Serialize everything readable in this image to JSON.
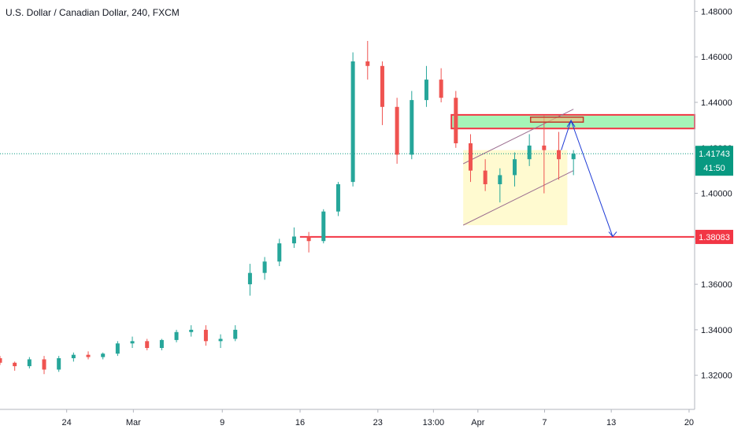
{
  "chart_data": {
    "type": "candlestick",
    "title": "U.S. Dollar / Canadian Dollar, 240, FXCM",
    "y_axis": {
      "range": [
        1.305,
        1.485
      ],
      "ticks": [
        "1.48000",
        "1.46000",
        "1.44000",
        "1.42000",
        "1.40000",
        "1.38000",
        "1.36000",
        "1.34000",
        "1.32000"
      ],
      "tick_values": [
        1.48,
        1.46,
        1.44,
        1.42,
        1.4,
        1.38,
        1.36,
        1.34,
        1.32
      ],
      "position": "right",
      "grid": false
    },
    "x_axis": {
      "ticks": [
        "24",
        "Mar",
        "9",
        "16",
        "23",
        "13:00",
        "Apr",
        "7",
        "13",
        "20"
      ],
      "tick_days": [
        3,
        9,
        17,
        24,
        31,
        36,
        40,
        46,
        52,
        59
      ]
    },
    "current_price": {
      "label": "1.41743",
      "value": 1.41743,
      "countdown": "41:50",
      "color": "#089981"
    },
    "support_level": {
      "label": "1.38083",
      "value": 1.38083,
      "color": "#f23645"
    },
    "resistance_zone": {
      "top": 1.4345,
      "bottom": 1.4285,
      "fill": "#a5f5b8",
      "border": "#f23645"
    },
    "channel": {
      "upper": {
        "from": [
          42,
          1.413
        ],
        "to": [
          51,
          1.437
        ]
      },
      "lower": {
        "from": [
          42,
          1.386
        ],
        "to": [
          51,
          1.41
        ]
      },
      "fill": "#fff9c4",
      "box": {
        "from_day": 42,
        "to_day": 50.5,
        "top": 1.419,
        "bottom": 1.386
      }
    },
    "small_box": {
      "from_day": 47.5,
      "to_day": 51.8,
      "top": 1.4335,
      "bottom": 1.4313
    },
    "projection": {
      "points": [
        [
          50,
          1.419
        ],
        [
          50.8,
          1.432
        ],
        [
          54.2,
          1.381
        ]
      ],
      "color": "#1e3bd6"
    },
    "colors": {
      "up": "#26a69a",
      "down": "#ef5350"
    },
    "ohlc": [
      [
        0,
        1.3275,
        1.3285,
        1.3245,
        1.3255
      ],
      [
        1,
        1.3255,
        1.326,
        1.322,
        1.324
      ],
      [
        2,
        1.324,
        1.328,
        1.323,
        1.327
      ],
      [
        3,
        1.327,
        1.3285,
        1.3205,
        1.3225
      ],
      [
        4,
        1.3225,
        1.3285,
        1.3215,
        1.3275
      ],
      [
        5,
        1.3275,
        1.33,
        1.326,
        1.329
      ],
      [
        6,
        1.329,
        1.3305,
        1.327,
        1.328
      ],
      [
        7,
        1.328,
        1.33,
        1.327,
        1.3295
      ],
      [
        8,
        1.3295,
        1.335,
        1.3285,
        1.334
      ],
      [
        9,
        1.334,
        1.337,
        1.332,
        1.335
      ],
      [
        10,
        1.335,
        1.336,
        1.331,
        1.332
      ],
      [
        11,
        1.332,
        1.336,
        1.331,
        1.3355
      ],
      [
        12,
        1.3355,
        1.34,
        1.3345,
        1.339
      ],
      [
        13,
        1.339,
        1.342,
        1.337,
        1.34
      ],
      [
        14,
        1.34,
        1.342,
        1.333,
        1.335
      ],
      [
        15,
        1.335,
        1.338,
        1.332,
        1.336
      ],
      [
        16,
        1.336,
        1.342,
        1.335,
        1.34
      ],
      [
        17,
        1.36,
        1.369,
        1.355,
        1.365
      ],
      [
        18,
        1.365,
        1.372,
        1.362,
        1.37
      ],
      [
        19,
        1.37,
        1.38,
        1.368,
        1.378
      ],
      [
        20,
        1.378,
        1.385,
        1.376,
        1.381
      ],
      [
        21,
        1.381,
        1.383,
        1.374,
        1.379
      ],
      [
        22,
        1.379,
        1.393,
        1.378,
        1.392
      ],
      [
        23,
        1.392,
        1.405,
        1.39,
        1.404
      ],
      [
        24,
        1.405,
        1.462,
        1.403,
        1.458
      ],
      [
        25,
        1.458,
        1.467,
        1.45,
        1.456
      ],
      [
        26,
        1.456,
        1.458,
        1.43,
        1.438
      ],
      [
        27,
        1.438,
        1.442,
        1.413,
        1.417
      ],
      [
        28,
        1.417,
        1.445,
        1.415,
        1.441
      ],
      [
        29,
        1.441,
        1.456,
        1.438,
        1.45
      ],
      [
        30,
        1.45,
        1.455,
        1.44,
        1.442
      ],
      [
        31,
        1.442,
        1.445,
        1.42,
        1.422
      ],
      [
        32,
        1.422,
        1.426,
        1.405,
        1.41
      ],
      [
        33,
        1.41,
        1.415,
        1.401,
        1.404
      ],
      [
        34,
        1.404,
        1.411,
        1.396,
        1.408
      ],
      [
        35,
        1.408,
        1.418,
        1.403,
        1.415
      ],
      [
        36,
        1.415,
        1.426,
        1.412,
        1.421
      ],
      [
        37,
        1.421,
        1.434,
        1.4,
        1.419
      ],
      [
        38,
        1.419,
        1.427,
        1.406,
        1.415
      ],
      [
        39,
        1.415,
        1.419,
        1.408,
        1.4174
      ]
    ]
  }
}
